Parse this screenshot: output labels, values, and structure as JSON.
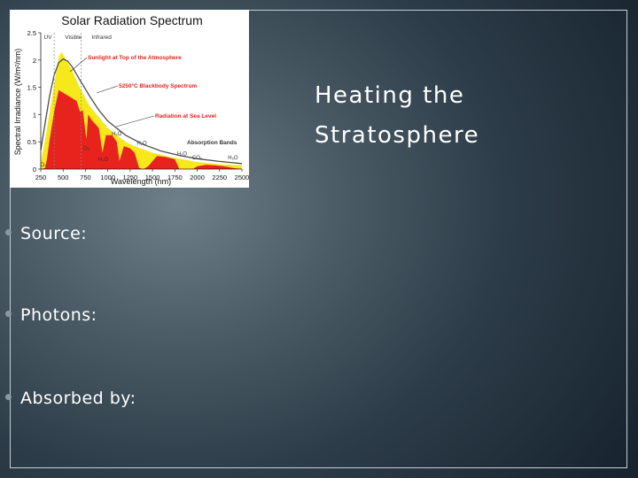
{
  "slide": {
    "title_line1": "Heating the",
    "title_line2": "Stratosphere",
    "bullets": [
      {
        "label": "Source:"
      },
      {
        "label": "Photons:"
      },
      {
        "label": "Absorbed by:"
      }
    ]
  },
  "chart_data": {
    "type": "area",
    "title": "Solar Radiation Spectrum",
    "xlabel": "Wavelength (nm)",
    "ylabel": "Spectral Irradiance (W/m²/nm)",
    "xlim": [
      250,
      2500
    ],
    "ylim": [
      0,
      2.5
    ],
    "x_ticks": [
      "250",
      "500",
      "750",
      "1000",
      "1250",
      "1500",
      "1750",
      "2000",
      "2250",
      "2500"
    ],
    "y_ticks": [
      "0",
      "0.5",
      "1",
      "1.5",
      "2",
      "2.5"
    ],
    "regions": [
      "UV",
      "Visible",
      "Infrared"
    ],
    "series": [
      {
        "name": "Sunlight at Top of the Atmosphere",
        "color": "#f7e81c",
        "x": [
          250,
          300,
          350,
          400,
          450,
          480,
          500,
          550,
          600,
          650,
          700,
          750,
          800,
          900,
          1000,
          1100,
          1200,
          1300,
          1500,
          1700,
          2000,
          2250,
          2500
        ],
        "y": [
          0.1,
          0.55,
          1.05,
          1.55,
          2.05,
          2.15,
          2.1,
          1.95,
          1.82,
          1.62,
          1.45,
          1.3,
          1.15,
          0.95,
          0.75,
          0.62,
          0.5,
          0.42,
          0.3,
          0.22,
          0.13,
          0.09,
          0.07
        ]
      },
      {
        "name": "5250°C Blackbody Spectrum",
        "color": "#4d4d4d",
        "x": [
          250,
          300,
          350,
          400,
          450,
          500,
          550,
          600,
          700,
          800,
          900,
          1000,
          1200,
          1400,
          1600,
          1800,
          2000,
          2250,
          2500
        ],
        "y": [
          0.35,
          0.85,
          1.35,
          1.72,
          1.95,
          2.02,
          1.98,
          1.88,
          1.6,
          1.33,
          1.08,
          0.88,
          0.62,
          0.45,
          0.33,
          0.25,
          0.19,
          0.14,
          0.1
        ]
      },
      {
        "name": "Radiation at Sea Level",
        "color": "#e8231d",
        "x": [
          250,
          300,
          320,
          350,
          400,
          450,
          500,
          550,
          600,
          650,
          690,
          720,
          760,
          780,
          820,
          900,
          940,
          980,
          1050,
          1100,
          1130,
          1180,
          1250,
          1300,
          1350,
          1400,
          1450,
          1550,
          1650,
          1750,
          1800,
          1850,
          1950,
          2000,
          2100,
          2200,
          2300,
          2400,
          2500
        ],
        "y": [
          0,
          0.02,
          0.2,
          0.55,
          1.05,
          1.45,
          1.4,
          1.35,
          1.3,
          1.25,
          1.05,
          1.08,
          0.55,
          1.0,
          0.9,
          0.75,
          0.3,
          0.62,
          0.62,
          0.5,
          0.15,
          0.42,
          0.38,
          0.3,
          0.02,
          0.0,
          0.05,
          0.24,
          0.22,
          0.18,
          0.0,
          0.0,
          0.0,
          0.05,
          0.08,
          0.07,
          0.05,
          0.02,
          0.0
        ]
      }
    ],
    "annotations": [
      "Sunlight at Top of the Atmosphere",
      "5250°C Blackbody Spectrum",
      "Radiation at Sea Level",
      "Absorption Bands",
      "H₂O",
      "O₂",
      "O₃",
      "CO₂"
    ],
    "absorption_labels": [
      {
        "text": "H₂O",
        "x": 1100,
        "y": 0.62
      },
      {
        "text": "O₂",
        "x": 760,
        "y": 0.35
      },
      {
        "text": "H₂O",
        "x": 1380,
        "y": 0.45
      },
      {
        "text": "H₂O",
        "x": 950,
        "y": 0.15
      },
      {
        "text": "H₂O",
        "x": 1830,
        "y": 0.25
      },
      {
        "text": "CO₂",
        "x": 2000,
        "y": 0.18
      },
      {
        "text": "H₂O",
        "x": 2400,
        "y": 0.18
      },
      {
        "text": "O₃",
        "x": 280,
        "y": 0.05
      }
    ]
  }
}
